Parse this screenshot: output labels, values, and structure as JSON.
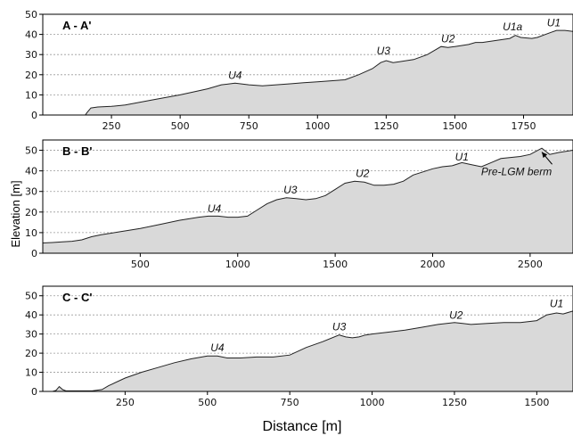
{
  "figure": {
    "xlabel": "Distance [m]",
    "ylabel": "Elevation [m]"
  },
  "chart_data": [
    {
      "type": "area",
      "title": "A - A'",
      "xlim": [
        0,
        1930
      ],
      "ylim": [
        0,
        50
      ],
      "xticks": [
        250,
        500,
        750,
        1000,
        1250,
        1500,
        1750
      ],
      "yticks": [
        0,
        10,
        20,
        30,
        40,
        50
      ],
      "grid": "horizontal dashed",
      "color": "#d9d9d9",
      "annotations": [
        {
          "text": "U4",
          "x": 700,
          "y": 18
        },
        {
          "text": "U3",
          "x": 1240,
          "y": 30
        },
        {
          "text": "U2",
          "x": 1475,
          "y": 36
        },
        {
          "text": "U1a",
          "x": 1710,
          "y": 42
        },
        {
          "text": "U1",
          "x": 1860,
          "y": 44
        }
      ],
      "x": [
        155,
        160,
        175,
        200,
        250,
        300,
        400,
        500,
        550,
        600,
        650,
        700,
        750,
        800,
        850,
        900,
        950,
        1000,
        1050,
        1100,
        1150,
        1200,
        1230,
        1250,
        1275,
        1300,
        1350,
        1400,
        1450,
        1475,
        1500,
        1550,
        1575,
        1600,
        1650,
        1700,
        1720,
        1740,
        1780,
        1800,
        1850,
        1870,
        1900,
        1930
      ],
      "y": [
        0,
        1,
        3.5,
        4,
        4.3,
        5,
        7.5,
        10,
        11.5,
        13,
        15,
        15.8,
        15,
        14.5,
        15,
        15.5,
        16,
        16.5,
        17,
        17.5,
        20,
        23,
        26,
        27,
        26,
        26.5,
        27.5,
        30,
        34,
        33.5,
        34,
        35,
        36,
        36,
        37,
        38,
        39.5,
        38.5,
        38,
        38.5,
        41,
        42,
        42,
        41.5
      ]
    },
    {
      "type": "area",
      "title": "B - B'",
      "xlim": [
        0,
        2720
      ],
      "ylim": [
        0,
        55
      ],
      "xticks": [
        500,
        1000,
        1500,
        2000,
        2500
      ],
      "yticks": [
        0,
        10,
        20,
        30,
        40,
        50
      ],
      "grid": "horizontal dashed",
      "color": "#d9d9d9",
      "annotations": [
        {
          "text": "U4",
          "x": 880,
          "y": 20
        },
        {
          "text": "U3",
          "x": 1270,
          "y": 29
        },
        {
          "text": "U2",
          "x": 1640,
          "y": 37
        },
        {
          "text": "U1",
          "x": 2150,
          "y": 45
        },
        {
          "text": "Pre-LGM berm",
          "x": 2430,
          "y": 38,
          "arrow_to": {
            "x": 2560,
            "y": 50
          }
        }
      ],
      "x": [
        0,
        50,
        100,
        150,
        200,
        250,
        300,
        400,
        500,
        600,
        700,
        800,
        850,
        900,
        950,
        1000,
        1050,
        1100,
        1150,
        1200,
        1250,
        1300,
        1350,
        1400,
        1450,
        1500,
        1550,
        1600,
        1650,
        1700,
        1750,
        1800,
        1850,
        1900,
        1950,
        2000,
        2050,
        2100,
        2150,
        2200,
        2250,
        2300,
        2350,
        2400,
        2450,
        2500,
        2560,
        2600,
        2650,
        2720
      ],
      "y": [
        5,
        5.2,
        5.5,
        5.8,
        6.5,
        8,
        9,
        10.5,
        12,
        14,
        16,
        17.5,
        18,
        18,
        17.5,
        17.5,
        18,
        21,
        24,
        26,
        27,
        26.5,
        26,
        26.5,
        28,
        31,
        34,
        35,
        34.5,
        33,
        33,
        33.5,
        35,
        38,
        39.5,
        41,
        42,
        42.5,
        44,
        43,
        42,
        44,
        46,
        46.5,
        47,
        48,
        51,
        48,
        49,
        50
      ]
    },
    {
      "type": "area",
      "title": "C - C'",
      "xlim": [
        0,
        1610
      ],
      "ylim": [
        0,
        55
      ],
      "xticks": [
        250,
        500,
        750,
        1000,
        1250,
        1500
      ],
      "yticks": [
        0,
        10,
        20,
        30,
        40,
        50
      ],
      "grid": "horizontal dashed",
      "color": "#d9d9d9",
      "annotations": [
        {
          "text": "U4",
          "x": 530,
          "y": 21
        },
        {
          "text": "U3",
          "x": 900,
          "y": 32
        },
        {
          "text": "U2",
          "x": 1255,
          "y": 38
        },
        {
          "text": "U1",
          "x": 1560,
          "y": 44
        }
      ],
      "x": [
        30,
        40,
        50,
        60,
        70,
        100,
        150,
        180,
        200,
        250,
        300,
        350,
        400,
        450,
        500,
        530,
        560,
        600,
        650,
        700,
        750,
        800,
        850,
        900,
        920,
        940,
        960,
        980,
        1000,
        1050,
        1100,
        1150,
        1200,
        1250,
        1275,
        1300,
        1350,
        1400,
        1450,
        1500,
        1530,
        1560,
        1580,
        1610
      ],
      "y": [
        0,
        0.5,
        2.5,
        1,
        0.3,
        0.3,
        0.3,
        1,
        3,
        7,
        10,
        12.5,
        15,
        17,
        18.5,
        18.5,
        17.5,
        17.5,
        18,
        18,
        19,
        23,
        26,
        29.5,
        28.5,
        28,
        28.5,
        29.5,
        30,
        31,
        32,
        33.5,
        35,
        36,
        35.5,
        35,
        35.5,
        36,
        36,
        37,
        40,
        41,
        40.5,
        42
      ]
    }
  ]
}
